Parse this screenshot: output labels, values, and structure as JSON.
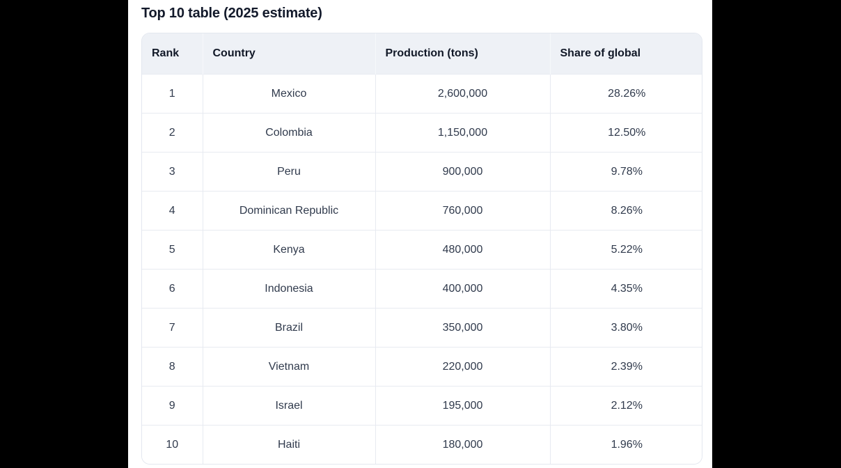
{
  "title": "Top 10 table (2025 estimate)",
  "colors": {
    "page_bg": "#000000",
    "stage_bg": "#ffffff",
    "header_bg": "#eef1f6",
    "border": "#e7eaf1",
    "title_text": "#131a2b",
    "header_text": "#111827",
    "body_text": "#303a4c"
  },
  "chart_data": {
    "type": "table",
    "title": "Top 10 table (2025 estimate)",
    "columns": [
      "Rank",
      "Country",
      "Production (tons)",
      "Share of global"
    ],
    "rows": [
      [
        "1",
        "Mexico",
        "2,600,000",
        "28.26%"
      ],
      [
        "2",
        "Colombia",
        "1,150,000",
        "12.50%"
      ],
      [
        "3",
        "Peru",
        "900,000",
        "9.78%"
      ],
      [
        "4",
        "Dominican Republic",
        "760,000",
        "8.26%"
      ],
      [
        "5",
        "Kenya",
        "480,000",
        "5.22%"
      ],
      [
        "6",
        "Indonesia",
        "400,000",
        "4.35%"
      ],
      [
        "7",
        "Brazil",
        "350,000",
        "3.80%"
      ],
      [
        "8",
        "Vietnam",
        "220,000",
        "2.39%"
      ],
      [
        "9",
        "Israel",
        "195,000",
        "2.12%"
      ],
      [
        "10",
        "Haiti",
        "180,000",
        "1.96%"
      ]
    ]
  }
}
